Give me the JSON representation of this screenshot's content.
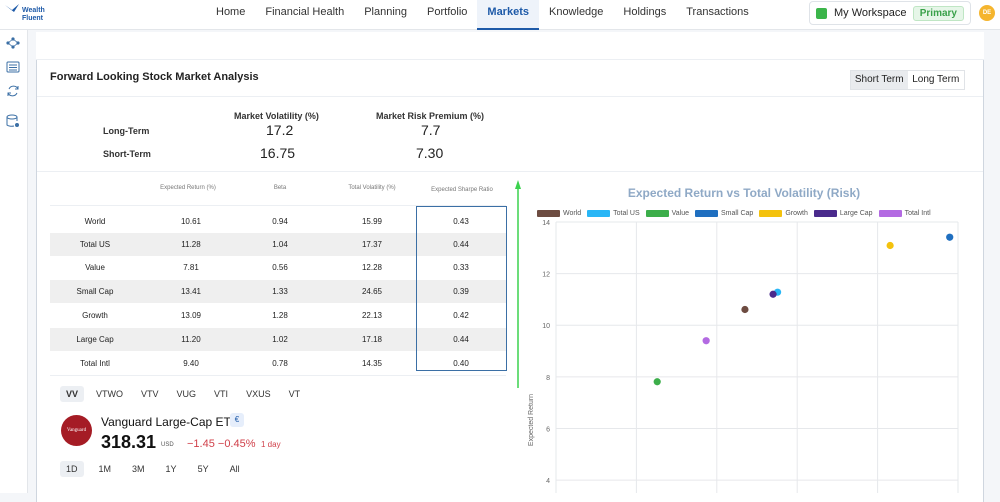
{
  "brand": {
    "line1": "Wealth",
    "line2": "Fluent"
  },
  "nav": {
    "items": [
      {
        "label": "Home"
      },
      {
        "label": "Financial Health"
      },
      {
        "label": "Planning"
      },
      {
        "label": "Portfolio"
      },
      {
        "label": "Markets",
        "active": true
      },
      {
        "label": "Knowledge"
      },
      {
        "label": "Holdings"
      },
      {
        "label": "Transactions"
      }
    ]
  },
  "workspace": {
    "label": "My Workspace",
    "badge": "Primary"
  },
  "user": {
    "initials": "DE"
  },
  "page": {
    "title": "Forward Looking Stock Market Analysis",
    "term_toggle": {
      "short": "Short Term",
      "long": "Long Term",
      "selected": "Short Term"
    }
  },
  "summary": {
    "col_volatility": "Market Volatility (%)",
    "col_premium": "Market Risk Premium (%)",
    "rows": [
      {
        "label": "Long-Term",
        "volatility": "17.2",
        "premium": "7.7"
      },
      {
        "label": "Short-Term",
        "volatility": "16.75",
        "premium": "7.30"
      }
    ]
  },
  "table": {
    "headers": {
      "expected_return": "Expected Return (%)",
      "beta": "Beta",
      "total_volatility": "Total Volatility (%)",
      "sharpe": "Expected Sharpe Ratio"
    },
    "rows": [
      {
        "name": "World",
        "expected_return": "10.61",
        "beta": "0.94",
        "total_volatility": "15.99",
        "sharpe": "0.43"
      },
      {
        "name": "Total US",
        "expected_return": "11.28",
        "beta": "1.04",
        "total_volatility": "17.37",
        "sharpe": "0.44"
      },
      {
        "name": "Value",
        "expected_return": "7.81",
        "beta": "0.56",
        "total_volatility": "12.28",
        "sharpe": "0.33"
      },
      {
        "name": "Small Cap",
        "expected_return": "13.41",
        "beta": "1.33",
        "total_volatility": "24.65",
        "sharpe": "0.39"
      },
      {
        "name": "Growth",
        "expected_return": "13.09",
        "beta": "1.28",
        "total_volatility": "22.13",
        "sharpe": "0.42"
      },
      {
        "name": "Large Cap",
        "expected_return": "11.20",
        "beta": "1.02",
        "total_volatility": "17.18",
        "sharpe": "0.44"
      },
      {
        "name": "Total Intl",
        "expected_return": "9.40",
        "beta": "0.78",
        "total_volatility": "14.35",
        "sharpe": "0.40"
      }
    ]
  },
  "tickers": {
    "tabs": [
      "VV",
      "VTWO",
      "VTV",
      "VUG",
      "VTI",
      "VXUS",
      "VT"
    ],
    "selected": "VV",
    "etf_name": "Vanguard Large-Cap ETF",
    "etf_logo_text": "Vanguard",
    "etf_badge": "€",
    "price": "318.31",
    "currency": "USD",
    "change": "−1.45 −0.45%",
    "change_period": "1 day",
    "ranges": [
      "1D",
      "1M",
      "3M",
      "1Y",
      "5Y",
      "All"
    ],
    "selected_range": "1D"
  },
  "colors": {
    "accent": "#1e5aa8",
    "negative": "#d0404a"
  },
  "chart_data": {
    "type": "scatter",
    "title": "Expected Return vs Total Volatility (Risk)",
    "ylabel": "Expected Return",
    "xlabel": "",
    "ylim": [
      3.5,
      14
    ],
    "yticks": [
      4,
      6,
      8,
      10,
      12,
      14
    ],
    "xlim": [
      8,
      25
    ],
    "grid": true,
    "legend_position": "top",
    "series": [
      {
        "name": "World",
        "color": "#6d4c41",
        "x": 15.99,
        "y": 10.61
      },
      {
        "name": "Total US",
        "color": "#29b6f6",
        "x": 17.37,
        "y": 11.28
      },
      {
        "name": "Value",
        "color": "#3cae4a",
        "x": 12.28,
        "y": 7.81
      },
      {
        "name": "Small Cap",
        "color": "#1f6fc0",
        "x": 24.65,
        "y": 13.41
      },
      {
        "name": "Growth",
        "color": "#f4c20d",
        "x": 22.13,
        "y": 13.09
      },
      {
        "name": "Large Cap",
        "color": "#4a2a8c",
        "x": 17.18,
        "y": 11.2
      },
      {
        "name": "Total Intl",
        "color": "#b36ae2",
        "x": 14.35,
        "y": 9.4
      }
    ]
  }
}
